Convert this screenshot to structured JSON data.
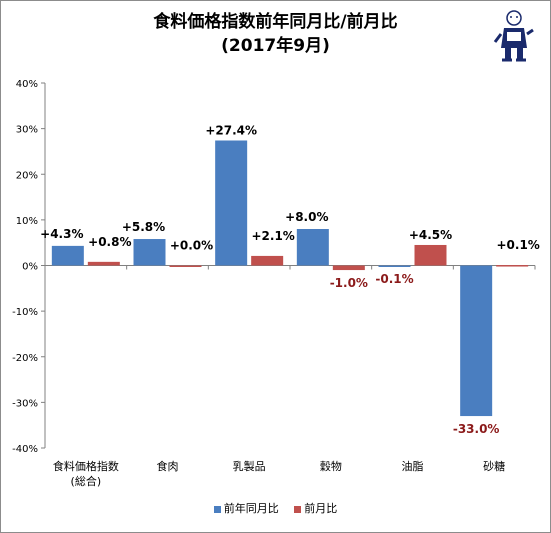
{
  "title": "食料価格指数前年同月比/前月比",
  "subtitle": "(2017年9月)",
  "mascot_icon": "mascot-icon",
  "colors": {
    "series1": "#4a7ec0",
    "series2": "#c0504d",
    "negative_label": "#8b1a1a",
    "grid": "#d0d0d0"
  },
  "chart_data": {
    "type": "bar",
    "title": "食料価格指数前年同月比/前月比",
    "subtitle": "(2017年9月)",
    "categories": [
      "食料価格指数(総合)",
      "食肉",
      "乳製品",
      "穀物",
      "油脂",
      "砂糖"
    ],
    "category_lines": [
      [
        "食料価格指数",
        "(総合)"
      ],
      [
        "食肉"
      ],
      [
        "乳製品"
      ],
      [
        "穀物"
      ],
      [
        "油脂"
      ],
      [
        "砂糖"
      ]
    ],
    "series": [
      {
        "name": "前年同月比",
        "values": [
          4.3,
          5.8,
          27.4,
          8.0,
          -0.1,
          -33.0
        ],
        "labels": [
          "+4.3%",
          "+5.8%",
          "+27.4%",
          "+8.0%",
          "-0.1%",
          "-33.0%"
        ]
      },
      {
        "name": "前月比",
        "values": [
          0.8,
          0.0,
          2.1,
          -1.0,
          4.5,
          0.1
        ],
        "labels": [
          "+0.8%",
          "+0.0%",
          "+2.1%",
          "-1.0%",
          "+4.5%",
          "+0.1%"
        ]
      }
    ],
    "ylim": [
      -40,
      40
    ],
    "yticks": [
      40,
      30,
      20,
      10,
      0,
      -10,
      -20,
      -30,
      -40
    ],
    "ytick_labels": [
      "40%",
      "30%",
      "20%",
      "10%",
      "0%",
      "-10%",
      "-20%",
      "-30%",
      "-40%"
    ],
    "grid": false,
    "legend": "bottom"
  }
}
